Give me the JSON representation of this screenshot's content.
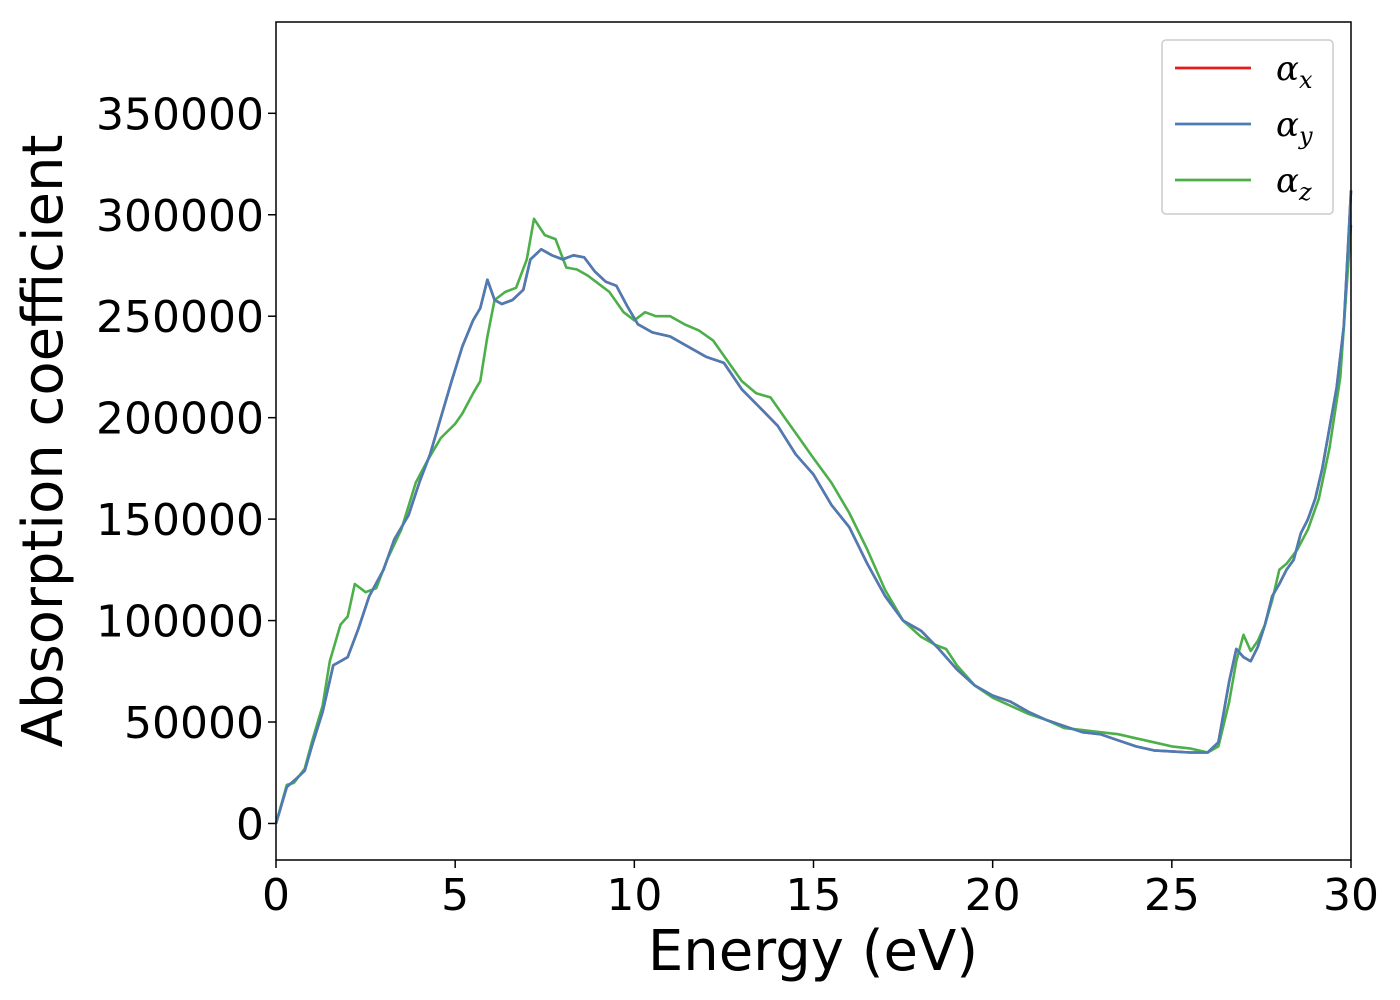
{
  "chart_data": {
    "type": "line",
    "xlabel": "Energy (eV)",
    "ylabel": "Absorption coefficient",
    "xlim": [
      0,
      30
    ],
    "ylim": [
      -18000,
      395000
    ],
    "xticks": [
      0,
      5,
      10,
      15,
      20,
      25,
      30
    ],
    "yticks": [
      0,
      50000,
      100000,
      150000,
      200000,
      250000,
      300000,
      350000
    ],
    "grid": false,
    "legend_position": "top-right",
    "series": [
      {
        "name": "α",
        "subscript": "x",
        "color": "#e41a1c",
        "x": [
          0,
          0.3,
          0.5,
          0.8,
          1,
          1.3,
          1.6,
          1.8,
          2,
          2.3,
          2.6,
          3,
          3.3,
          3.7,
          4,
          4.3,
          4.6,
          4.9,
          5.2,
          5.5,
          5.7,
          5.9,
          6.1,
          6.3,
          6.6,
          6.9,
          7.1,
          7.4,
          7.7,
          8,
          8.3,
          8.6,
          8.9,
          9.2,
          9.5,
          9.8,
          10.1,
          10.5,
          11,
          11.5,
          12,
          12.5,
          13,
          13.5,
          14,
          14.5,
          15,
          15.5,
          16,
          16.5,
          17,
          17.5,
          18,
          18.5,
          19,
          19.5,
          20,
          20.5,
          21,
          21.5,
          22,
          22.5,
          23,
          23.5,
          24,
          24.5,
          25,
          25.5,
          26,
          26.3,
          26.6,
          26.8,
          27,
          27.2,
          27.4,
          27.6,
          27.8,
          28,
          28.2,
          28.4,
          28.6,
          28.8,
          29,
          29.2,
          29.4,
          29.6,
          29.8,
          30
        ],
        "y": [
          0,
          18000,
          21000,
          26000,
          38000,
          55000,
          78000,
          80000,
          82000,
          96000,
          112000,
          125000,
          140000,
          152000,
          168000,
          182000,
          200000,
          218000,
          235000,
          248000,
          254000,
          268000,
          258000,
          256000,
          258000,
          263000,
          278000,
          283000,
          280000,
          278000,
          280000,
          279000,
          272000,
          267000,
          265000,
          255000,
          246000,
          242000,
          240000,
          235000,
          230000,
          227000,
          214000,
          205000,
          196000,
          182000,
          172000,
          157000,
          146000,
          128000,
          112000,
          100000,
          95000,
          86000,
          76000,
          68000,
          63000,
          60000,
          55000,
          51000,
          48000,
          45000,
          44000,
          41000,
          38000,
          36000,
          35500,
          35000,
          35000,
          40000,
          70000,
          86000,
          82000,
          80000,
          87000,
          98000,
          112000,
          118000,
          125000,
          130000,
          143000,
          150000,
          160000,
          175000,
          195000,
          215000,
          245000,
          312000
        ]
      },
      {
        "name": "α",
        "subscript": "y",
        "color": "#4a7db5",
        "x": [
          0,
          0.3,
          0.5,
          0.8,
          1,
          1.3,
          1.6,
          1.8,
          2,
          2.3,
          2.6,
          3,
          3.3,
          3.7,
          4,
          4.3,
          4.6,
          4.9,
          5.2,
          5.5,
          5.7,
          5.9,
          6.1,
          6.3,
          6.6,
          6.9,
          7.1,
          7.4,
          7.7,
          8,
          8.3,
          8.6,
          8.9,
          9.2,
          9.5,
          9.8,
          10.1,
          10.5,
          11,
          11.5,
          12,
          12.5,
          13,
          13.5,
          14,
          14.5,
          15,
          15.5,
          16,
          16.5,
          17,
          17.5,
          18,
          18.5,
          19,
          19.5,
          20,
          20.5,
          21,
          21.5,
          22,
          22.5,
          23,
          23.5,
          24,
          24.5,
          25,
          25.5,
          26,
          26.3,
          26.6,
          26.8,
          27,
          27.2,
          27.4,
          27.6,
          27.8,
          28,
          28.2,
          28.4,
          28.6,
          28.8,
          29,
          29.2,
          29.4,
          29.6,
          29.8,
          30
        ],
        "y": [
          0,
          18000,
          21000,
          26000,
          38000,
          55000,
          78000,
          80000,
          82000,
          96000,
          112000,
          125000,
          140000,
          152000,
          168000,
          182000,
          200000,
          218000,
          235000,
          248000,
          254000,
          268000,
          258000,
          256000,
          258000,
          263000,
          278000,
          283000,
          280000,
          278000,
          280000,
          279000,
          272000,
          267000,
          265000,
          255000,
          246000,
          242000,
          240000,
          235000,
          230000,
          227000,
          214000,
          205000,
          196000,
          182000,
          172000,
          157000,
          146000,
          128000,
          112000,
          100000,
          95000,
          86000,
          76000,
          68000,
          63000,
          60000,
          55000,
          51000,
          48000,
          45000,
          44000,
          41000,
          38000,
          36000,
          35500,
          35000,
          35000,
          40000,
          70000,
          86000,
          82000,
          80000,
          87000,
          98000,
          112000,
          118000,
          125000,
          130000,
          143000,
          150000,
          160000,
          175000,
          195000,
          215000,
          245000,
          312000
        ]
      },
      {
        "name": "α",
        "subscript": "z",
        "color": "#4daf4a",
        "x": [
          0,
          0.3,
          0.5,
          0.8,
          1,
          1.3,
          1.5,
          1.8,
          2,
          2.2,
          2.5,
          2.8,
          3.1,
          3.5,
          3.9,
          4.2,
          4.6,
          5,
          5.2,
          5.5,
          5.7,
          5.9,
          6.1,
          6.4,
          6.7,
          7,
          7.2,
          7.5,
          7.8,
          8.1,
          8.4,
          8.7,
          9,
          9.3,
          9.7,
          10,
          10.3,
          10.6,
          11,
          11.4,
          11.8,
          12.2,
          12.6,
          13,
          13.4,
          13.8,
          14.2,
          14.6,
          15,
          15.5,
          16,
          16.5,
          17,
          17.5,
          18,
          18.4,
          18.7,
          19,
          19.5,
          20,
          20.5,
          21,
          21.5,
          22,
          22.5,
          23,
          23.5,
          24,
          24.5,
          25,
          25.5,
          26,
          26.3,
          26.6,
          26.8,
          27,
          27.2,
          27.4,
          27.6,
          27.8,
          28,
          28.2,
          28.5,
          28.8,
          29.1,
          29.4,
          29.7,
          30
        ],
        "y": [
          0,
          19000,
          20000,
          27000,
          40000,
          58000,
          80000,
          98000,
          102000,
          118000,
          114000,
          116000,
          130000,
          145000,
          168000,
          178000,
          190000,
          197000,
          202000,
          212000,
          218000,
          240000,
          258000,
          262000,
          264000,
          278000,
          298000,
          290000,
          288000,
          274000,
          273000,
          270000,
          266000,
          262000,
          252000,
          248000,
          252000,
          250000,
          250000,
          246000,
          243000,
          238000,
          228000,
          218000,
          212000,
          210000,
          200000,
          190000,
          180000,
          168000,
          153000,
          135000,
          115000,
          100000,
          92000,
          88000,
          86000,
          78000,
          68000,
          62000,
          58000,
          54000,
          51000,
          47000,
          46000,
          45000,
          44000,
          42000,
          40000,
          38000,
          37000,
          35000,
          38000,
          60000,
          80000,
          93000,
          85000,
          90000,
          98000,
          110000,
          125000,
          128000,
          135000,
          145000,
          160000,
          185000,
          220000,
          295000
        ]
      }
    ]
  }
}
